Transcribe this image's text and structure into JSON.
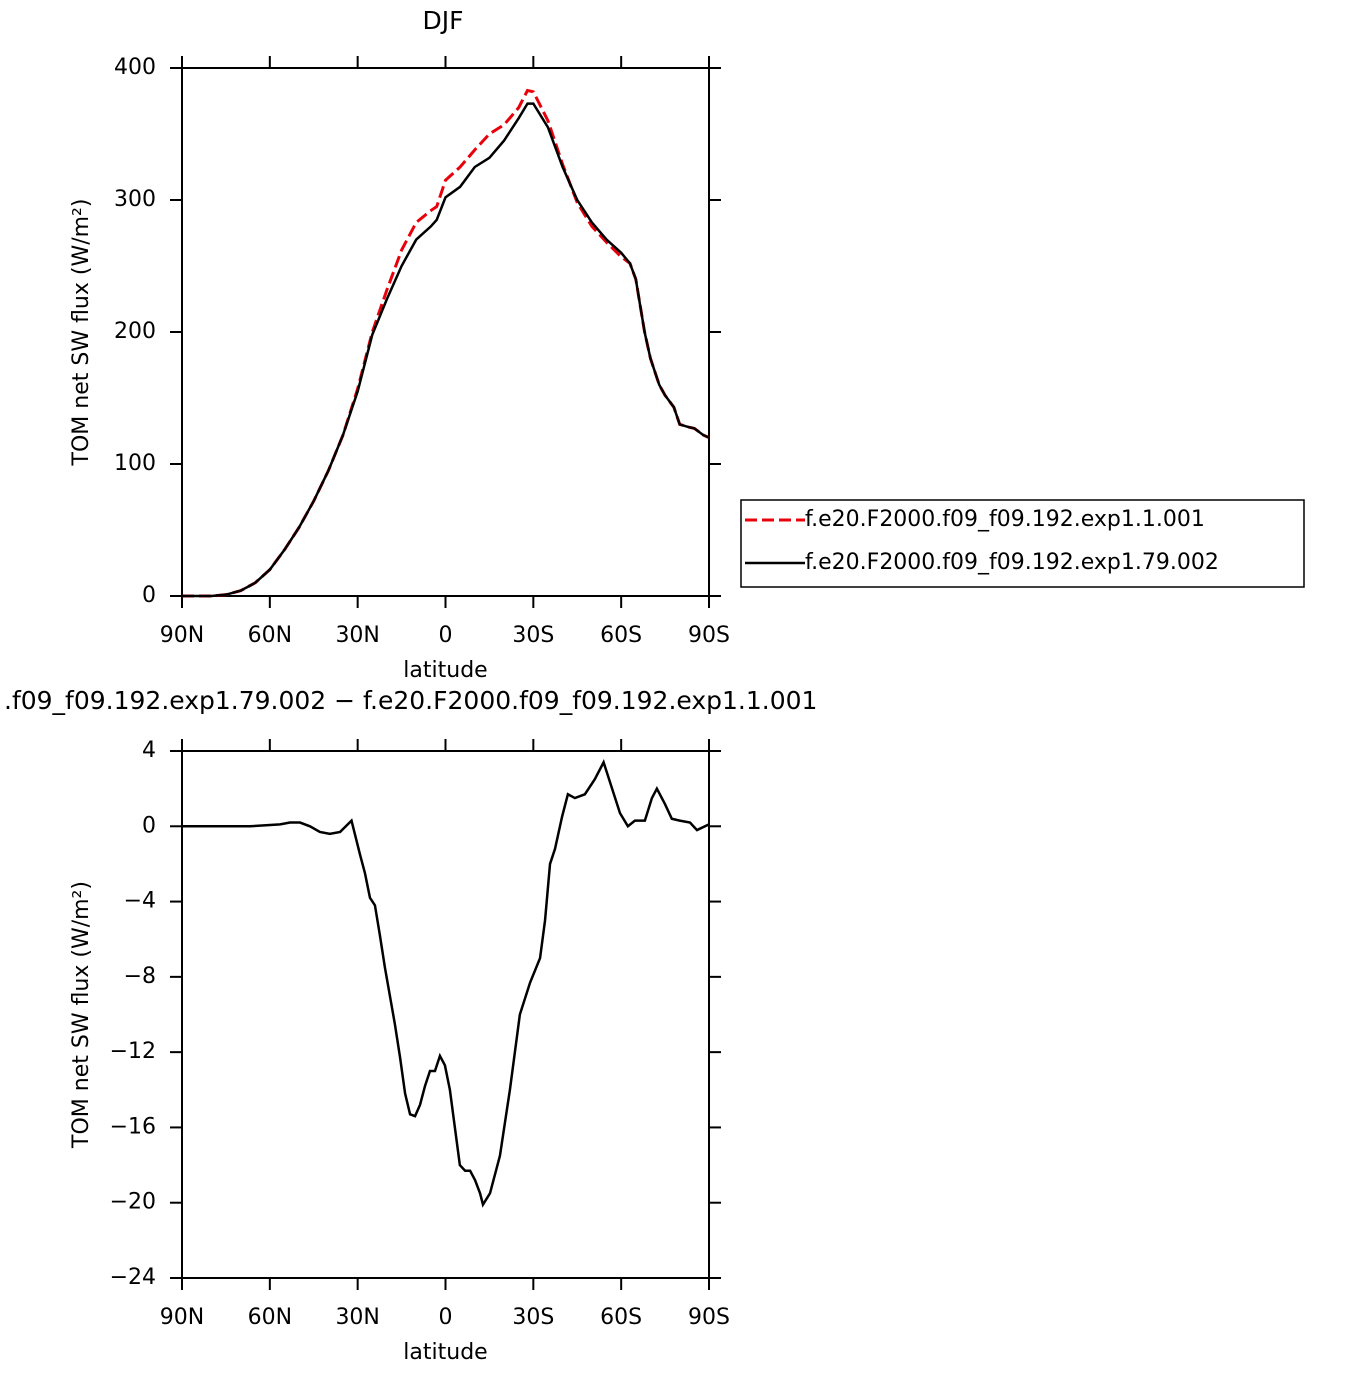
{
  "chart_data": [
    {
      "type": "line",
      "title": "DJF",
      "xlabel": "latitude",
      "ylabel": "TOM net SW flux (W/m²)",
      "xlim": [
        90,
        -90
      ],
      "xticks": [
        {
          "value": 90,
          "label": "90N"
        },
        {
          "value": 60,
          "label": "60N"
        },
        {
          "value": 30,
          "label": "30N"
        },
        0,
        {
          "value": -30,
          "label": "30S"
        },
        {
          "value": -60,
          "label": "60S"
        },
        {
          "value": -90,
          "label": "90S"
        }
      ],
      "ylim": [
        0,
        400
      ],
      "yticks": [
        0,
        100,
        200,
        300,
        400
      ],
      "legend": "right",
      "x": [
        90,
        85,
        80,
        75,
        70,
        65,
        60,
        55,
        50,
        45,
        40,
        35,
        30,
        25,
        20,
        15,
        10,
        5,
        3,
        0,
        -5,
        -10,
        -15,
        -20,
        -25,
        -28,
        -30,
        -35,
        -40,
        -45,
        -50,
        -55,
        -60,
        -63,
        -65,
        -68,
        -70,
        -73,
        -75,
        -78,
        -80,
        -83,
        -85,
        -88,
        -90
      ],
      "series": [
        {
          "name": "f.e20.F2000.f09_f09.192.exp1.1.001",
          "color": "#e8000b",
          "dash": true,
          "values": [
            0,
            0,
            0,
            1,
            4,
            10,
            20,
            35,
            52,
            72,
            95,
            122,
            157,
            200,
            232,
            262,
            283,
            292,
            295,
            315,
            325,
            338,
            350,
            357,
            370,
            383,
            382,
            360,
            327,
            298,
            280,
            268,
            257,
            252,
            240,
            200,
            180,
            160,
            152,
            143,
            130,
            128,
            127,
            122,
            120
          ]
        },
        {
          "name": "f.e20.F2000.f09_f09.192.exp1.79.002",
          "color": "#000000",
          "dash": false,
          "values": [
            0,
            0,
            0,
            1,
            4,
            10,
            20,
            35,
            52,
            72,
            95,
            122,
            155,
            198,
            225,
            250,
            270,
            280,
            285,
            302,
            310,
            325,
            332,
            345,
            362,
            373,
            373,
            355,
            325,
            300,
            283,
            270,
            260,
            252,
            240,
            200,
            180,
            160,
            152,
            143,
            130,
            128,
            127,
            122,
            120
          ]
        }
      ]
    },
    {
      "type": "line",
      "title": ".f09_f09.192.exp1.79.002 − f.e20.F2000.f09_f09.192.exp1.1.001",
      "xlabel": "latitude",
      "ylabel": "TOM net SW flux (W/m²)",
      "xlim": [
        90,
        -90
      ],
      "xticks": [
        {
          "value": 90,
          "label": "90N"
        },
        {
          "value": 60,
          "label": "60N"
        },
        {
          "value": 30,
          "label": "30N"
        },
        0,
        {
          "value": -30,
          "label": "30S"
        },
        {
          "value": -60,
          "label": "60S"
        },
        {
          "value": -90,
          "label": "90S"
        }
      ],
      "ylim": [
        -24,
        4
      ],
      "yticks": [
        4,
        0,
        {
          "value": -4,
          "label": "−4"
        },
        {
          "value": -8,
          "label": "−8"
        },
        {
          "value": -12,
          "label": "−12"
        },
        {
          "value": -16,
          "label": "−16"
        },
        {
          "value": -20,
          "label": "−20"
        },
        {
          "value": -24,
          "label": "−24"
        }
      ],
      "x": [
        90,
        66.8,
        56.5,
        53.1,
        49.7,
        46.3,
        42.9,
        39.5,
        36,
        32.1,
        29.2,
        27.5,
        25.8,
        24.1,
        22.4,
        20.7,
        19,
        17.3,
        15.5,
        13.8,
        12.1,
        10.4,
        8.7,
        7,
        5.3,
        3.6,
        1.9,
        0.2,
        -1.5,
        -3.2,
        -4.9,
        -6.7,
        -8.4,
        -10.1,
        -11.8,
        -12.8,
        -15.2,
        -18.6,
        -22,
        -25.4,
        -28.9,
        -32.3,
        -34,
        -35.7,
        -37.4,
        -39.8,
        -41.8,
        -44.2,
        -47.6,
        -51,
        -54,
        -56.9,
        -59.6,
        -62.3,
        -64.7,
        -68.1,
        -70.5,
        -72.2,
        -74.9,
        -77.3,
        -80,
        -83.5,
        -85.9,
        -90
      ],
      "series": [
        {
          "color": "#000000",
          "dash": false,
          "values": [
            0,
            0,
            0.1,
            0.2,
            0.2,
            0,
            -0.3,
            -0.4,
            -0.3,
            0.3,
            -1.5,
            -2.5,
            -3.8,
            -4.2,
            -5.8,
            -7.5,
            -9,
            -10.5,
            -12.3,
            -14.2,
            -15.3,
            -15.4,
            -14.8,
            -13.8,
            -13,
            -13,
            -12.2,
            -12.7,
            -14,
            -16,
            -18,
            -18.3,
            -18.3,
            -18.8,
            -19.5,
            -20.1,
            -19.5,
            -17.5,
            -14,
            -10,
            -8.3,
            -7,
            -5,
            -2,
            -1.2,
            0.5,
            1.7,
            1.5,
            1.7,
            2.5,
            3.4,
            2,
            0.7,
            0,
            0.3,
            0.3,
            1.5,
            2,
            1.2,
            0.4,
            0.3,
            0.2,
            -0.2,
            0.1
          ]
        }
      ]
    }
  ]
}
